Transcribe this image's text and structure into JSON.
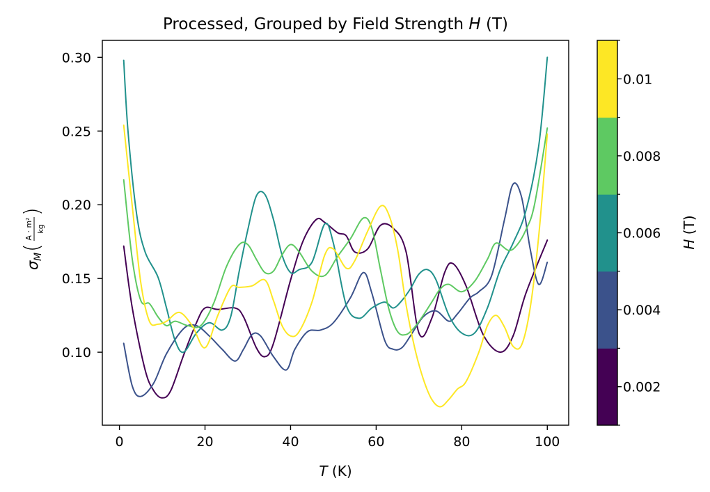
{
  "chart_data": {
    "type": "line",
    "title": "Processed, Grouped by Field Strength H (T)",
    "title_parts": {
      "prefix": "Processed, Grouped by Field Strength ",
      "var": "H",
      "suffix": " (T)"
    },
    "xlabel": {
      "var": "T",
      "unit": " (K)"
    },
    "ylabel": {
      "sym": "σ",
      "sub": "M",
      "num": "A · m²",
      "den": "kg"
    },
    "xlim": [
      -4,
      105
    ],
    "ylim": [
      0.0505,
      0.3115
    ],
    "x_ticks": [
      0,
      20,
      40,
      60,
      80,
      100
    ],
    "x_tick_labels": [
      "0",
      "20",
      "40",
      "60",
      "80",
      "100"
    ],
    "y_ticks": [
      0.1,
      0.15,
      0.2,
      0.25,
      0.3
    ],
    "y_tick_labels": [
      "0.10",
      "0.15",
      "0.20",
      "0.25",
      "0.30"
    ],
    "grid": false,
    "colorbar": {
      "label": {
        "var": "H",
        "unit": " (T)"
      },
      "levels": [
        0.002,
        0.004,
        0.006,
        0.008,
        0.01
      ],
      "tick_labels": [
        "0.002",
        "0.004",
        "0.006",
        "0.008",
        "0.01"
      ],
      "colors": [
        "#440154",
        "#3b528b",
        "#21918c",
        "#5ec962",
        "#fde725"
      ]
    },
    "series": [
      {
        "h": 0.002,
        "color": "#440154",
        "x": [
          1,
          3,
          6,
          8,
          10,
          12,
          15,
          18,
          20,
          23,
          27,
          29,
          32,
          34,
          36,
          40,
          43,
          46,
          48,
          51,
          53,
          55,
          58,
          61,
          64,
          67,
          70,
          73,
          76,
          78,
          81,
          85,
          89,
          92,
          95,
          100
        ],
        "y": [
          0.172,
          0.13,
          0.088,
          0.074,
          0.069,
          0.074,
          0.098,
          0.12,
          0.13,
          0.129,
          0.13,
          0.124,
          0.103,
          0.097,
          0.106,
          0.149,
          0.176,
          0.19,
          0.188,
          0.181,
          0.179,
          0.168,
          0.17,
          0.186,
          0.184,
          0.168,
          0.113,
          0.123,
          0.154,
          0.16,
          0.145,
          0.112,
          0.1,
          0.111,
          0.14,
          0.176
        ]
      },
      {
        "h": 0.004,
        "color": "#3b528b",
        "x": [
          1,
          3,
          5,
          8,
          11,
          15,
          18,
          21,
          24,
          27,
          29,
          31,
          33,
          36,
          39,
          41,
          44,
          47,
          50,
          54,
          57,
          59,
          62,
          64,
          66,
          68,
          71,
          74,
          77,
          79,
          82,
          84,
          87,
          90,
          92,
          94,
          96,
          98,
          100
        ],
        "y": [
          0.106,
          0.077,
          0.07,
          0.079,
          0.099,
          0.116,
          0.118,
          0.111,
          0.102,
          0.094,
          0.102,
          0.112,
          0.111,
          0.097,
          0.088,
          0.102,
          0.114,
          0.115,
          0.12,
          0.137,
          0.154,
          0.14,
          0.108,
          0.102,
          0.103,
          0.111,
          0.124,
          0.128,
          0.121,
          0.126,
          0.137,
          0.141,
          0.152,
          0.19,
          0.214,
          0.205,
          0.17,
          0.146,
          0.161
        ]
      },
      {
        "h": 0.006,
        "color": "#21918c",
        "x": [
          1,
          2,
          4,
          6,
          9,
          11,
          13,
          15,
          18,
          21,
          24,
          26,
          28,
          30,
          32,
          34,
          36,
          38,
          40,
          42,
          45,
          48,
          50,
          53,
          56,
          59,
          62,
          64,
          66,
          68,
          70,
          72,
          74,
          77,
          80,
          83,
          86,
          89,
          92,
          95,
          98,
          100
        ],
        "y": [
          0.298,
          0.25,
          0.194,
          0.168,
          0.151,
          0.13,
          0.108,
          0.1,
          0.113,
          0.12,
          0.115,
          0.124,
          0.155,
          0.183,
          0.206,
          0.207,
          0.19,
          0.166,
          0.154,
          0.156,
          0.161,
          0.187,
          0.174,
          0.132,
          0.123,
          0.13,
          0.134,
          0.13,
          0.135,
          0.143,
          0.153,
          0.156,
          0.149,
          0.125,
          0.113,
          0.113,
          0.13,
          0.156,
          0.174,
          0.196,
          0.24,
          0.3
        ]
      },
      {
        "h": 0.008,
        "color": "#5ec962",
        "x": [
          1,
          3,
          5,
          7,
          9,
          11,
          13,
          16,
          19,
          22,
          25,
          28,
          30,
          32,
          34,
          36,
          38,
          40,
          42,
          45,
          48,
          51,
          54,
          57,
          59,
          61,
          63,
          65,
          67,
          69,
          71,
          73,
          75,
          77,
          80,
          83,
          86,
          88,
          91,
          93,
          95,
          97,
          100
        ],
        "y": [
          0.217,
          0.163,
          0.135,
          0.133,
          0.124,
          0.118,
          0.121,
          0.118,
          0.118,
          0.133,
          0.158,
          0.173,
          0.173,
          0.163,
          0.154,
          0.155,
          0.166,
          0.173,
          0.168,
          0.155,
          0.152,
          0.165,
          0.177,
          0.191,
          0.184,
          0.156,
          0.129,
          0.114,
          0.112,
          0.117,
          0.125,
          0.134,
          0.143,
          0.146,
          0.141,
          0.148,
          0.163,
          0.174,
          0.169,
          0.173,
          0.183,
          0.2,
          0.252
        ]
      },
      {
        "h": 0.01,
        "color": "#fde725",
        "x": [
          1,
          3,
          5,
          7,
          9,
          11,
          14,
          17,
          20,
          23,
          26,
          28,
          31,
          34,
          36,
          38,
          40,
          42,
          45,
          48,
          50,
          53,
          55,
          58,
          61,
          63,
          65,
          67,
          69,
          71,
          73,
          75,
          77,
          79,
          81,
          84,
          86,
          88,
          90,
          92,
          94,
          96,
          98,
          100
        ],
        "y": [
          0.254,
          0.199,
          0.147,
          0.121,
          0.119,
          0.121,
          0.127,
          0.118,
          0.103,
          0.125,
          0.144,
          0.144,
          0.145,
          0.149,
          0.135,
          0.118,
          0.111,
          0.114,
          0.134,
          0.166,
          0.17,
          0.157,
          0.162,
          0.182,
          0.199,
          0.193,
          0.17,
          0.132,
          0.103,
          0.082,
          0.068,
          0.063,
          0.068,
          0.075,
          0.08,
          0.1,
          0.118,
          0.125,
          0.117,
          0.104,
          0.105,
          0.13,
          0.179,
          0.248
        ]
      }
    ]
  }
}
